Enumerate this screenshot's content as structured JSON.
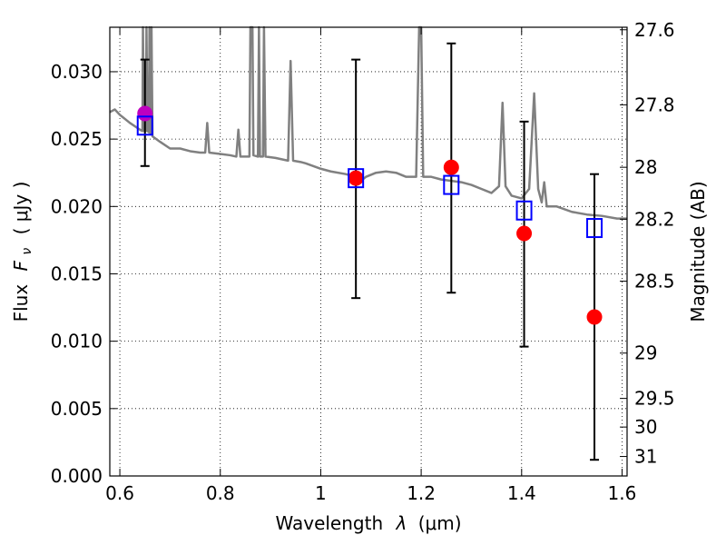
{
  "chart_data": {
    "type": "scatter",
    "xlabel_text": "Wavelength",
    "xlabel_math": "λ",
    "xlabel_unit": "(μm)",
    "ylabel_text": "Flux",
    "ylabel_math": "F",
    "ylabel_sub": "ν",
    "ylabel_unit": "( μJy )",
    "y2label": "Magnitude (AB)",
    "xlim": [
      0.58,
      1.61
    ],
    "ylim": [
      0.0,
      0.0333
    ],
    "x_ticks": [
      {
        "value": 0.6,
        "label": "0.6"
      },
      {
        "value": 0.8,
        "label": "0.8"
      },
      {
        "value": 1.0,
        "label": "1"
      },
      {
        "value": 1.2,
        "label": "1.2"
      },
      {
        "value": 1.4,
        "label": "1.4"
      },
      {
        "value": 1.6,
        "label": "1.6"
      }
    ],
    "y_ticks": [
      {
        "value": 0.0,
        "label": "0.000"
      },
      {
        "value": 0.005,
        "label": "0.005"
      },
      {
        "value": 0.01,
        "label": "0.010"
      },
      {
        "value": 0.015,
        "label": "0.015"
      },
      {
        "value": 0.02,
        "label": "0.020"
      },
      {
        "value": 0.025,
        "label": "0.025"
      },
      {
        "value": 0.03,
        "label": "0.030"
      }
    ],
    "y2_ticks": [
      {
        "mag": 27.6,
        "label": "27.6"
      },
      {
        "mag": 27.8,
        "label": "27.8"
      },
      {
        "mag": 28.0,
        "label": "28"
      },
      {
        "mag": 28.2,
        "label": "28.2"
      },
      {
        "mag": 28.5,
        "label": "28.5"
      },
      {
        "mag": 29.0,
        "label": "29"
      },
      {
        "mag": 29.5,
        "label": "29.5"
      },
      {
        "mag": 30.0,
        "label": "30"
      },
      {
        "mag": 31.0,
        "label": "31"
      }
    ],
    "grid": true,
    "model_spectrum": {
      "color": "#808080",
      "points": [
        [
          0.58,
          0.027
        ],
        [
          0.59,
          0.0272
        ],
        [
          0.6,
          0.0268
        ],
        [
          0.62,
          0.0262
        ],
        [
          0.64,
          0.0257
        ],
        [
          0.645,
          0.0256
        ],
        [
          0.646,
          0.034
        ],
        [
          0.648,
          0.0256
        ],
        [
          0.652,
          0.0256
        ],
        [
          0.653,
          0.034
        ],
        [
          0.655,
          0.0256
        ],
        [
          0.658,
          0.0255
        ],
        [
          0.659,
          0.034
        ],
        [
          0.661,
          0.0254
        ],
        [
          0.663,
          0.034
        ],
        [
          0.665,
          0.0252
        ],
        [
          0.68,
          0.0248
        ],
        [
          0.7,
          0.0243
        ],
        [
          0.72,
          0.0243
        ],
        [
          0.74,
          0.0241
        ],
        [
          0.76,
          0.024
        ],
        [
          0.77,
          0.024
        ],
        [
          0.774,
          0.0262
        ],
        [
          0.778,
          0.024
        ],
        [
          0.8,
          0.0239
        ],
        [
          0.82,
          0.0238
        ],
        [
          0.832,
          0.0237
        ],
        [
          0.836,
          0.0257
        ],
        [
          0.84,
          0.0237
        ],
        [
          0.858,
          0.0237
        ],
        [
          0.86,
          0.034
        ],
        [
          0.864,
          0.034
        ],
        [
          0.866,
          0.0238
        ],
        [
          0.875,
          0.0237
        ],
        [
          0.877,
          0.034
        ],
        [
          0.879,
          0.0237
        ],
        [
          0.885,
          0.0237
        ],
        [
          0.887,
          0.034
        ],
        [
          0.89,
          0.0237
        ],
        [
          0.91,
          0.0236
        ],
        [
          0.935,
          0.0234
        ],
        [
          0.94,
          0.0308
        ],
        [
          0.945,
          0.0234
        ],
        [
          0.96,
          0.0233
        ],
        [
          0.97,
          0.0232
        ],
        [
          1.0,
          0.0228
        ],
        [
          1.02,
          0.0226
        ],
        [
          1.05,
          0.0224
        ],
        [
          1.07,
          0.0222
        ],
        [
          1.08,
          0.0219
        ],
        [
          1.09,
          0.0222
        ],
        [
          1.11,
          0.0225
        ],
        [
          1.13,
          0.0226
        ],
        [
          1.15,
          0.0225
        ],
        [
          1.17,
          0.0222
        ],
        [
          1.19,
          0.0222
        ],
        [
          1.196,
          0.034
        ],
        [
          1.2,
          0.034
        ],
        [
          1.204,
          0.0222
        ],
        [
          1.22,
          0.0222
        ],
        [
          1.24,
          0.022
        ],
        [
          1.26,
          0.0219
        ],
        [
          1.28,
          0.0218
        ],
        [
          1.3,
          0.0216
        ],
        [
          1.32,
          0.0213
        ],
        [
          1.34,
          0.021
        ],
        [
          1.355,
          0.0215
        ],
        [
          1.362,
          0.0277
        ],
        [
          1.368,
          0.0215
        ],
        [
          1.38,
          0.0208
        ],
        [
          1.4,
          0.0206
        ],
        [
          1.415,
          0.0213
        ],
        [
          1.425,
          0.0284
        ],
        [
          1.433,
          0.0213
        ],
        [
          1.44,
          0.0203
        ],
        [
          1.445,
          0.0218
        ],
        [
          1.45,
          0.02
        ],
        [
          1.47,
          0.02
        ],
        [
          1.5,
          0.0196
        ],
        [
          1.53,
          0.0194
        ],
        [
          1.56,
          0.0193
        ],
        [
          1.59,
          0.0191
        ],
        [
          1.61,
          0.0191
        ]
      ]
    },
    "series": [
      {
        "marker": "circle",
        "color": "#ff0000",
        "points": [
          {
            "x": 1.07,
            "y": 0.0221
          },
          {
            "x": 1.26,
            "y": 0.0229
          },
          {
            "x": 1.405,
            "y": 0.018
          },
          {
            "x": 1.545,
            "y": 0.0118
          }
        ]
      },
      {
        "marker": "circle",
        "color": "#bf00bf",
        "points": [
          {
            "x": 0.65,
            "y": 0.0269
          }
        ]
      },
      {
        "marker": "square",
        "color": "#0000ff",
        "points": [
          {
            "x": 0.65,
            "y": 0.026
          },
          {
            "x": 1.07,
            "y": 0.0221
          },
          {
            "x": 1.26,
            "y": 0.0216
          },
          {
            "x": 1.405,
            "y": 0.0197
          },
          {
            "x": 1.545,
            "y": 0.0184
          }
        ]
      }
    ],
    "errorbars": [
      {
        "x": 0.65,
        "y_low": 0.023,
        "y_high": 0.0309
      },
      {
        "x": 1.07,
        "y_low": 0.0132,
        "y_high": 0.0309
      },
      {
        "x": 1.26,
        "y_low": 0.0136,
        "y_high": 0.0321
      },
      {
        "x": 1.405,
        "y_low": 0.0096,
        "y_high": 0.0263
      },
      {
        "x": 1.545,
        "y_low": 0.0012,
        "y_high": 0.0224
      }
    ]
  }
}
